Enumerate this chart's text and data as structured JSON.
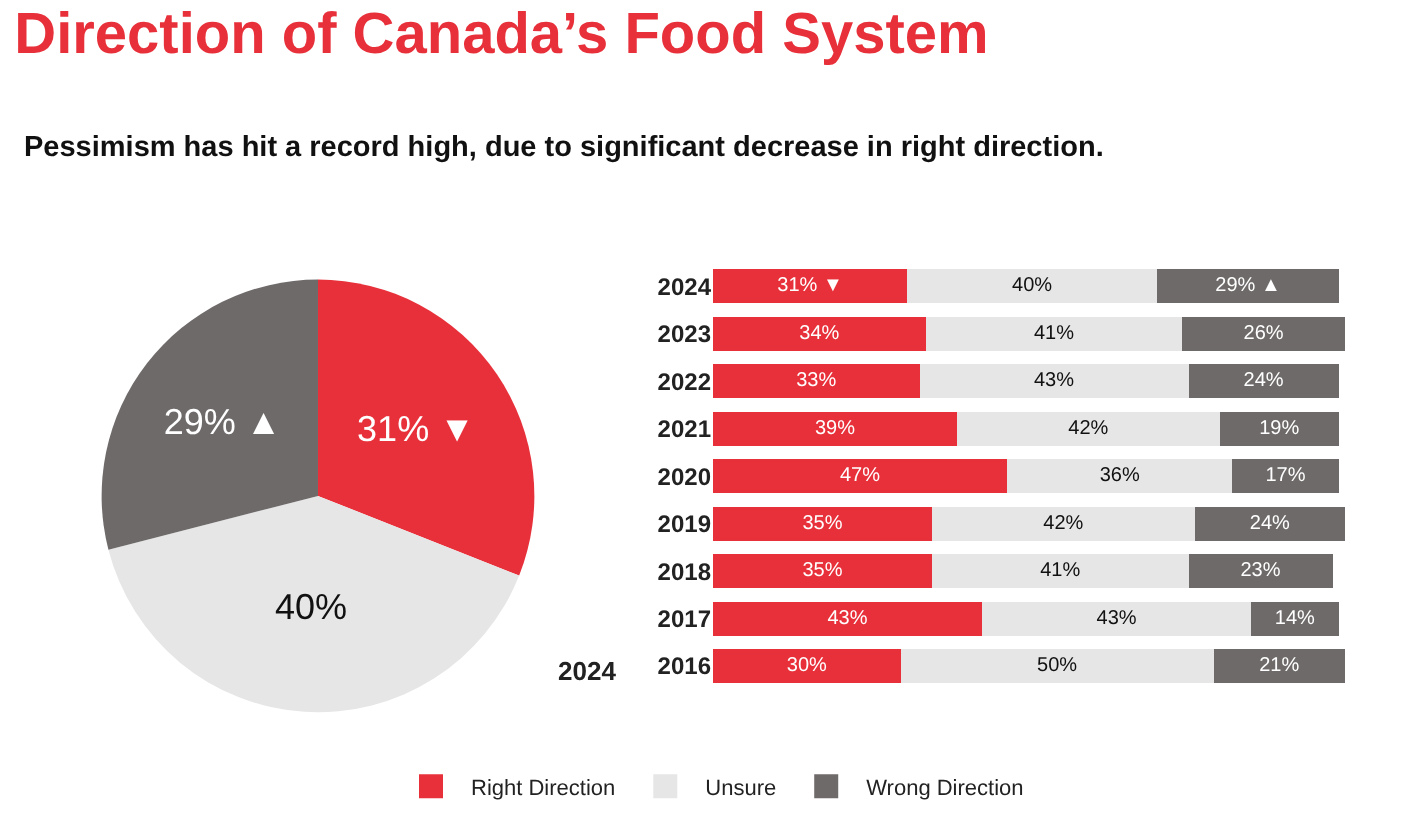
{
  "chart_data": [
    {
      "type": "pie",
      "title": "Direction of Canada’s Food System",
      "subtitle": "Pessimism has hit a record high, due to significant decrease in right direction.",
      "categories": [
        null,
        null,
        null
      ],
      "values": [
        31,
        40,
        29
      ],
      "colors": [
        "#e8303a",
        "#e6e6e6",
        "#6f6a6a"
      ],
      "value_labels": [
        "31% ▼",
        "40%",
        "29% ▲"
      ],
      "annotations": [
        "2024"
      ]
    },
    {
      "type": "bar",
      "orientation": "horizontal",
      "stacked": true,
      "legend": "bottom",
      "categories": [
        "2024",
        "2023",
        "2022",
        "2021",
        "2020",
        "2019",
        "2018",
        "2017",
        "2016"
      ],
      "series": [
        {
          "name": "Right Direction",
          "color": "#e8303a",
          "values": [
            31,
            34,
            33,
            39,
            47,
            35,
            35,
            43,
            30
          ],
          "value_labels": [
            "31% ▼",
            "34%",
            "33%",
            "39%",
            "47%",
            "35%",
            "35%",
            "43%",
            "30%"
          ]
        },
        {
          "name": "Unsure",
          "color": "#e6e6e6",
          "values": [
            40,
            41,
            43,
            42,
            36,
            42,
            41,
            43,
            50
          ],
          "value_labels": [
            "40%",
            "41%",
            "43%",
            "42%",
            "36%",
            "42%",
            "41%",
            "43%",
            "50%"
          ]
        },
        {
          "name": "Wrong Direction",
          "color": "#6f6a6a",
          "values": [
            29,
            26,
            24,
            19,
            17,
            24,
            23,
            14,
            21
          ],
          "value_labels": [
            "29% ▲",
            "26%",
            "24%",
            "19%",
            "17%",
            "24%",
            "23%",
            "14%",
            "21%"
          ]
        }
      ]
    }
  ]
}
